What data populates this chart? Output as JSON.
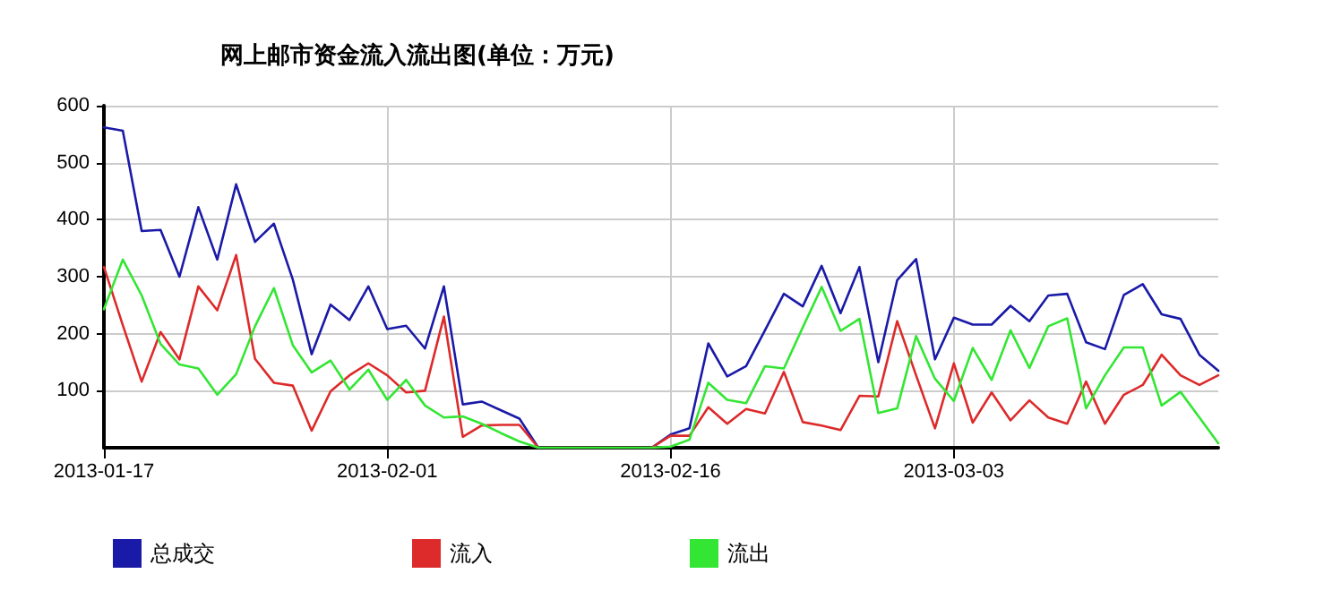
{
  "chart_data": {
    "type": "line",
    "title": "网上邮市资金流入流出图(单位：万元)",
    "x": [
      "2013-01-17",
      "2013-01-18",
      "2013-01-19",
      "2013-01-20",
      "2013-01-21",
      "2013-01-22",
      "2013-01-23",
      "2013-01-24",
      "2013-01-25",
      "2013-01-26",
      "2013-01-27",
      "2013-01-28",
      "2013-01-29",
      "2013-01-30",
      "2013-01-31",
      "2013-02-01",
      "2013-02-02",
      "2013-02-03",
      "2013-02-04",
      "2013-02-05",
      "2013-02-06",
      "2013-02-07",
      "2013-02-08",
      "2013-02-09",
      "2013-02-15",
      "2013-02-16",
      "2013-02-17",
      "2013-02-18",
      "2013-02-19",
      "2013-02-20",
      "2013-02-21",
      "2013-02-22",
      "2013-02-23",
      "2013-02-24",
      "2013-02-25",
      "2013-02-26",
      "2013-02-27",
      "2013-02-28",
      "2013-03-01",
      "2013-03-02",
      "2013-03-03",
      "2013-03-04",
      "2013-03-05",
      "2013-03-06",
      "2013-03-07",
      "2013-03-08",
      "2013-03-09",
      "2013-03-10",
      "2013-03-11",
      "2013-03-12",
      "2013-03-13",
      "2013-03-14",
      "2013-03-15",
      "2013-03-16",
      "2013-03-17"
    ],
    "series": [
      {
        "name": "总成交",
        "color": "#1a1aa8",
        "values": [
          562,
          556,
          380,
          382,
          300,
          422,
          330,
          462,
          361,
          393,
          295,
          164,
          251,
          224,
          283,
          208,
          214,
          174,
          283,
          76,
          81,
          66,
          51,
          0,
          0,
          23,
          34,
          183,
          125,
          143,
          206,
          270,
          248,
          319,
          236,
          317,
          150,
          294,
          331,
          155,
          228,
          216,
          216,
          249,
          222,
          267,
          270,
          185,
          173,
          268,
          287,
          234,
          226,
          163,
          135
        ]
      },
      {
        "name": "流入",
        "color": "#dd2a2a",
        "values": [
          317,
          215,
          116,
          203,
          155,
          283,
          241,
          338,
          156,
          114,
          109,
          30,
          99,
          127,
          148,
          127,
          97,
          100,
          230,
          19,
          39,
          40,
          40,
          0,
          0,
          21,
          21,
          71,
          42,
          68,
          60,
          133,
          45,
          39,
          31,
          91,
          90,
          222,
          127,
          34,
          148,
          44,
          97,
          48,
          83,
          53,
          42,
          116,
          42,
          93,
          110,
          163,
          127,
          110,
          127
        ]
      },
      {
        "name": "流出",
        "color": "#33e633",
        "values": [
          243,
          330,
          267,
          182,
          146,
          139,
          93,
          129,
          213,
          280,
          180,
          132,
          153,
          102,
          137,
          84,
          119,
          74,
          53,
          55,
          42,
          26,
          11,
          0,
          0,
          2,
          14,
          114,
          84,
          78,
          143,
          139,
          211,
          282,
          205,
          226,
          61,
          69,
          196,
          121,
          82,
          175,
          119,
          206,
          140,
          213,
          227,
          69,
          127,
          176,
          176,
          74,
          98,
          53,
          8
        ]
      }
    ],
    "xlim": [
      "2013-01-17",
      "2013-03-17"
    ],
    "xticks": [
      "2013-01-17",
      "2013-02-01",
      "2013-02-16",
      "2013-03-03"
    ],
    "ylim": [
      0,
      600
    ],
    "yticks": [
      100,
      200,
      300,
      400,
      500,
      600
    ],
    "grid": true,
    "legend": "bottom",
    "marker": "none",
    "line_style": "solid"
  }
}
